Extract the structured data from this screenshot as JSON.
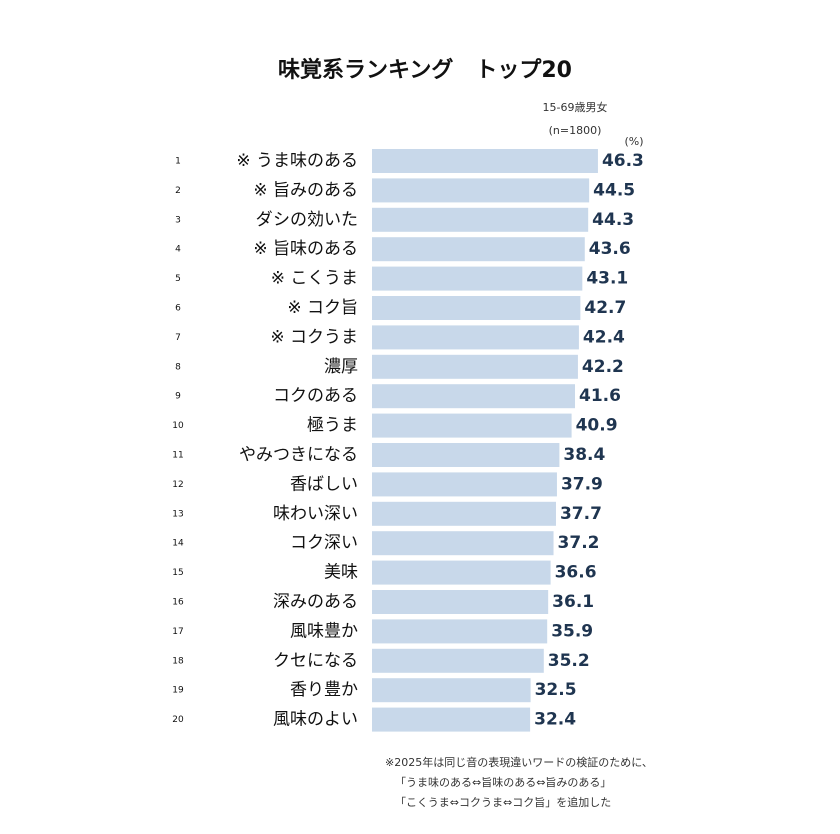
{
  "chart_data": {
    "type": "hbar",
    "title": "味覚系ランキング　トップ20",
    "subtitle": [
      "15-69歳男女",
      "(n=1800)"
    ],
    "unit": "(%)",
    "ranks": [
      1,
      2,
      3,
      4,
      5,
      6,
      7,
      8,
      9,
      10,
      11,
      12,
      13,
      14,
      15,
      16,
      17,
      18,
      19,
      20
    ],
    "categories": [
      "※ うま味のある",
      "※ 旨みのある",
      "ダシの効いた",
      "※ 旨味のある",
      "※ こくうま",
      "※ コク旨",
      "※ コクうま",
      "濃厚",
      "コクのある",
      "極うま",
      "やみつきになる",
      "香ばしい",
      "味わい深い",
      "コク深い",
      "美味",
      "深みのある",
      "風味豊か",
      "クセになる",
      "香り豊か",
      "風味のよい"
    ],
    "values": [
      46.3,
      44.5,
      44.3,
      43.6,
      43.1,
      42.7,
      42.4,
      42.2,
      41.6,
      40.9,
      38.4,
      37.9,
      37.7,
      37.2,
      36.6,
      36.1,
      35.9,
      35.2,
      32.5,
      32.4
    ],
    "color": "#c8d8ea",
    "label_color": "#1f3550",
    "footnote": [
      "※2025年は同じ音の表現違いワードの検証のために、",
      "「うま味のある⇔旨味のある⇔旨みのある」",
      "「こくうま⇔コクうま⇔コク旨」を追加した"
    ]
  }
}
